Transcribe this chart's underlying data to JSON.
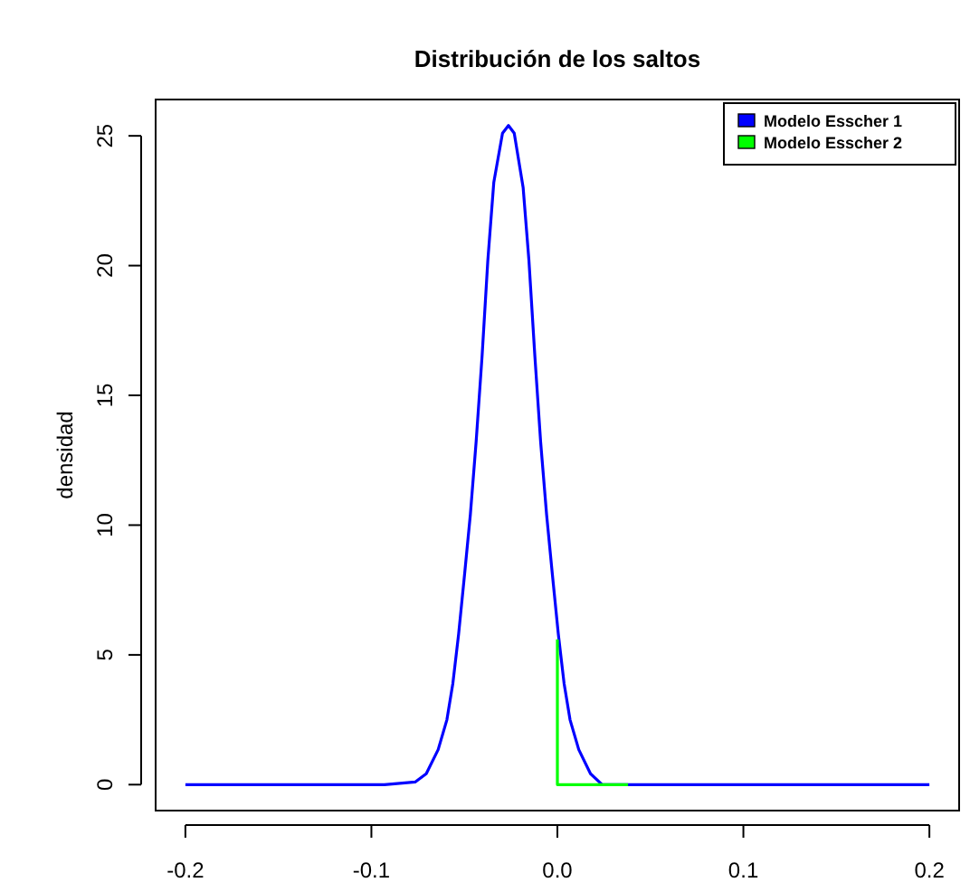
{
  "chart_data": {
    "type": "line",
    "title": "Distribución de los saltos",
    "ylabel": "densidad",
    "xlim": [
      -0.216,
      0.216
    ],
    "ylim": [
      -1,
      26.4
    ],
    "xticks": [
      {
        "value": -0.2,
        "label": "-0.2"
      },
      {
        "value": -0.1,
        "label": "-0.1"
      },
      {
        "value": 0,
        "label": "0.0"
      },
      {
        "value": 0.1,
        "label": "0.1"
      },
      {
        "value": 0.2,
        "label": "0.2"
      }
    ],
    "yticks": [
      0,
      5,
      10,
      15,
      20,
      25
    ],
    "grid": false,
    "legend": "top right",
    "marker": "none",
    "line_style": "solid",
    "series": [
      {
        "name": "Modelo Esscher 1",
        "color": "#0000ff",
        "x": [
          -0.2,
          -0.093,
          -0.0765,
          -0.0705,
          -0.0641,
          -0.0594,
          -0.0562,
          -0.0531,
          -0.0499,
          -0.0468,
          -0.0437,
          -0.0405,
          -0.0374,
          -0.0342,
          -0.0295,
          -0.0263,
          -0.0232,
          -0.0184,
          -0.0153,
          -0.0121,
          -0.009,
          -0.0058,
          -0.0027,
          0.0005,
          0.0036,
          0.0068,
          0.0115,
          0.0178,
          0.0241,
          0.2
        ],
        "values": [
          0,
          0,
          0.1,
          0.42,
          1.35,
          2.5,
          3.9,
          5.8,
          8.1,
          10.4,
          13.2,
          16.5,
          20.2,
          23.2,
          25.1,
          25.4,
          25.1,
          23,
          20.2,
          16.5,
          13.2,
          10.4,
          8.1,
          5.8,
          3.9,
          2.5,
          1.35,
          0.42,
          0,
          0
        ]
      },
      {
        "name": "Modelo Esscher 2",
        "color": "#00ff00",
        "x": [
          0,
          0,
          0.038
        ],
        "values": [
          5.6,
          0,
          0
        ]
      }
    ]
  }
}
